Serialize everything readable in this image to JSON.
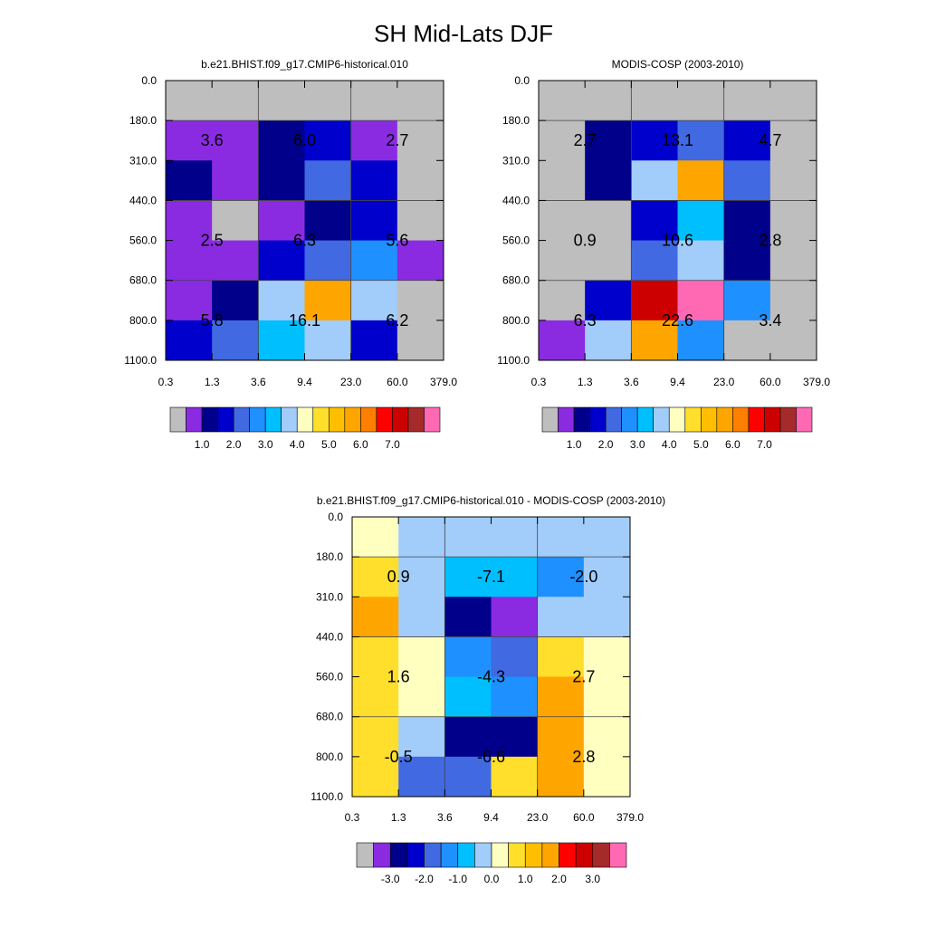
{
  "title": "SH Mid-Lats DJF",
  "palette": {
    "gray": "#bebebe",
    "purple": "#8a2be2",
    "navy": "#00008b",
    "blue": "#0000cd",
    "royal": "#4169e1",
    "dodger": "#1e90ff",
    "sky": "#00bfff",
    "light": "#a2cdfa",
    "cream": "#ffffc0",
    "yellow": "#ffdf2b",
    "gold": "#ffbf00",
    "orange": "#ffa500",
    "dorange": "#ff7f00",
    "red": "#ff0000",
    "dred": "#cd0000",
    "brown": "#a52a2a",
    "pink": "#ff69b4"
  },
  "chart_data": [
    {
      "type": "heatmap",
      "id": "model",
      "title": "b.e21.BHIST.f09_g17.CMIP6-historical.010",
      "x_ticks": [
        "0.3",
        "1.3",
        "3.6",
        "9.4",
        "23.0",
        "60.0",
        "379.0"
      ],
      "y_ticks": [
        "0.0",
        "180.0",
        "310.0",
        "440.0",
        "560.0",
        "680.0",
        "800.0",
        "1100.0"
      ],
      "cells": [
        [
          "gray",
          "gray",
          "gray",
          "gray",
          "gray",
          "gray"
        ],
        [
          "purple",
          "purple",
          "navy",
          "blue",
          "purple",
          "gray"
        ],
        [
          "navy",
          "purple",
          "navy",
          "royal",
          "blue",
          "gray"
        ],
        [
          "purple",
          "gray",
          "purple",
          "navy",
          "blue",
          "gray"
        ],
        [
          "purple",
          "purple",
          "blue",
          "royal",
          "dodger",
          "purple"
        ],
        [
          "purple",
          "navy",
          "light",
          "orange",
          "light",
          "gray"
        ],
        [
          "blue",
          "royal",
          "sky",
          "light",
          "blue",
          "gray"
        ]
      ],
      "labels": [
        {
          "row": 0,
          "col": 0,
          "text": "3.6"
        },
        {
          "row": 0,
          "col": 1,
          "text": "6.0"
        },
        {
          "row": 0,
          "col": 2,
          "text": "2.7"
        },
        {
          "row": 1,
          "col": 0,
          "text": "2.5"
        },
        {
          "row": 1,
          "col": 1,
          "text": "6.3"
        },
        {
          "row": 1,
          "col": 2,
          "text": "5.6"
        },
        {
          "row": 2,
          "col": 0,
          "text": "5.8"
        },
        {
          "row": 2,
          "col": 1,
          "text": "16.1"
        },
        {
          "row": 2,
          "col": 2,
          "text": "6.2"
        }
      ],
      "colorbar": {
        "colors": [
          "gray",
          "purple",
          "navy",
          "blue",
          "royal",
          "dodger",
          "sky",
          "light",
          "cream",
          "yellow",
          "gold",
          "orange",
          "dorange",
          "red",
          "dred",
          "brown",
          "pink"
        ],
        "labels": [
          "1.0",
          "2.0",
          "3.0",
          "4.0",
          "5.0",
          "6.0",
          "7.0"
        ]
      }
    },
    {
      "type": "heatmap",
      "id": "obs",
      "title": "MODIS-COSP (2003-2010)",
      "x_ticks": [
        "0.3",
        "1.3",
        "3.6",
        "9.4",
        "23.0",
        "60.0",
        "379.0"
      ],
      "y_ticks": [
        "0.0",
        "180.0",
        "310.0",
        "440.0",
        "560.0",
        "680.0",
        "800.0",
        "1100.0"
      ],
      "cells": [
        [
          "gray",
          "gray",
          "gray",
          "gray",
          "gray",
          "gray"
        ],
        [
          "gray",
          "navy",
          "blue",
          "royal",
          "blue",
          "gray"
        ],
        [
          "gray",
          "navy",
          "light",
          "orange",
          "royal",
          "gray"
        ],
        [
          "gray",
          "gray",
          "blue",
          "sky",
          "navy",
          "gray"
        ],
        [
          "gray",
          "gray",
          "royal",
          "light",
          "navy",
          "gray"
        ],
        [
          "gray",
          "blue",
          "dred",
          "pink",
          "dodger",
          "gray"
        ],
        [
          "purple",
          "light",
          "orange",
          "dodger",
          "gray",
          "gray"
        ]
      ],
      "labels": [
        {
          "row": 0,
          "col": 0,
          "text": "2.7"
        },
        {
          "row": 0,
          "col": 1,
          "text": "13.1"
        },
        {
          "row": 0,
          "col": 2,
          "text": "4.7"
        },
        {
          "row": 1,
          "col": 0,
          "text": "0.9"
        },
        {
          "row": 1,
          "col": 1,
          "text": "10.6"
        },
        {
          "row": 1,
          "col": 2,
          "text": "2.8"
        },
        {
          "row": 2,
          "col": 0,
          "text": "6.3"
        },
        {
          "row": 2,
          "col": 1,
          "text": "22.6"
        },
        {
          "row": 2,
          "col": 2,
          "text": "3.4"
        }
      ],
      "colorbar": {
        "colors": [
          "gray",
          "purple",
          "navy",
          "blue",
          "royal",
          "dodger",
          "sky",
          "light",
          "cream",
          "yellow",
          "gold",
          "orange",
          "dorange",
          "red",
          "dred",
          "brown",
          "pink"
        ],
        "labels": [
          "1.0",
          "2.0",
          "3.0",
          "4.0",
          "5.0",
          "6.0",
          "7.0"
        ]
      }
    },
    {
      "type": "heatmap",
      "id": "diff",
      "title": "b.e21.BHIST.f09_g17.CMIP6-historical.010 - MODIS-COSP (2003-2010)",
      "x_ticks": [
        "0.3",
        "1.3",
        "3.6",
        "9.4",
        "23.0",
        "60.0",
        "379.0"
      ],
      "y_ticks": [
        "0.0",
        "180.0",
        "310.0",
        "440.0",
        "560.0",
        "680.0",
        "800.0",
        "1100.0"
      ],
      "cells": [
        [
          "cream",
          "light",
          "light",
          "light",
          "light",
          "light"
        ],
        [
          "yellow",
          "light",
          "sky",
          "sky",
          "dodger",
          "light"
        ],
        [
          "orange",
          "light",
          "navy",
          "purple",
          "light",
          "light"
        ],
        [
          "yellow",
          "cream",
          "dodger",
          "royal",
          "yellow",
          "cream"
        ],
        [
          "yellow",
          "cream",
          "sky",
          "dodger",
          "orange",
          "cream"
        ],
        [
          "yellow",
          "light",
          "navy",
          "navy",
          "orange",
          "cream"
        ],
        [
          "yellow",
          "royal",
          "royal",
          "yellow",
          "orange",
          "cream"
        ]
      ],
      "labels": [
        {
          "row": 0,
          "col": 0,
          "text": "0.9"
        },
        {
          "row": 0,
          "col": 1,
          "text": "-7.1"
        },
        {
          "row": 0,
          "col": 2,
          "text": "-2.0"
        },
        {
          "row": 1,
          "col": 0,
          "text": "1.6"
        },
        {
          "row": 1,
          "col": 1,
          "text": "-4.3"
        },
        {
          "row": 1,
          "col": 2,
          "text": "2.7"
        },
        {
          "row": 2,
          "col": 0,
          "text": "-0.5"
        },
        {
          "row": 2,
          "col": 1,
          "text": "-6.6"
        },
        {
          "row": 2,
          "col": 2,
          "text": "2.8"
        }
      ],
      "colorbar": {
        "colors": [
          "gray",
          "purple",
          "navy",
          "blue",
          "royal",
          "dodger",
          "sky",
          "light",
          "cream",
          "yellow",
          "gold",
          "orange",
          "red",
          "dred",
          "brown",
          "pink"
        ],
        "labels": [
          "-3.0",
          "-2.0",
          "-1.0",
          "0.0",
          "1.0",
          "2.0",
          "3.0"
        ]
      }
    }
  ]
}
